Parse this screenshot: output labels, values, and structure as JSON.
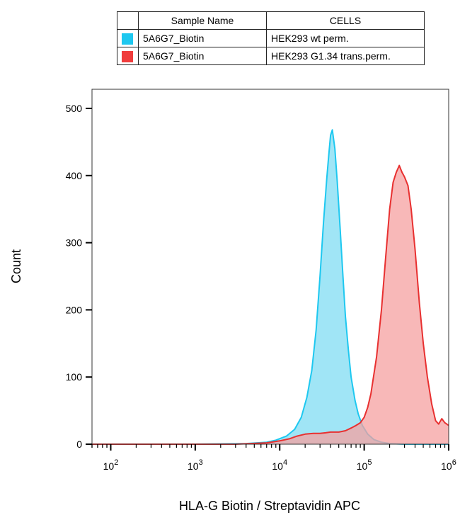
{
  "legend": {
    "header_sample": "Sample Name",
    "header_cells": "CELLS",
    "rows": [
      {
        "sample": "5A6G7_Biotin",
        "cells": "HEK293 wt perm.",
        "color": "#1ec8f0"
      },
      {
        "sample": "5A6G7_Biotin",
        "cells": "HEK293 G1.34 trans.perm.",
        "color": "#f03c3c"
      }
    ]
  },
  "chart_data": {
    "type": "area",
    "xlabel": "HLA-G Biotin / Streptavidin APC",
    "ylabel": "Count",
    "x_scale": "log",
    "xlim": [
      60,
      1000000
    ],
    "ylim": [
      0,
      500
    ],
    "x_ticks": [
      {
        "value": 100,
        "base": "10",
        "exp": "2"
      },
      {
        "value": 1000,
        "base": "10",
        "exp": "3"
      },
      {
        "value": 10000,
        "base": "10",
        "exp": "4"
      },
      {
        "value": 100000,
        "base": "10",
        "exp": "5"
      },
      {
        "value": 1000000,
        "base": "10",
        "exp": "6"
      }
    ],
    "y_ticks": [
      0,
      100,
      200,
      300,
      400,
      500
    ],
    "series": [
      {
        "color": "#1ec8f0",
        "fill": "#8fe0f5",
        "x": [
          60,
          1000,
          4000,
          7000,
          9000,
          12000,
          15000,
          18000,
          21000,
          24000,
          27000,
          30000,
          33000,
          36000,
          38000,
          40000,
          42000,
          45000,
          48000,
          52000,
          56000,
          60000,
          65000,
          70000,
          78000,
          85000,
          95000,
          110000,
          130000,
          160000,
          200000,
          300000,
          1000000
        ],
        "y": [
          0,
          0,
          1,
          3,
          6,
          12,
          22,
          40,
          70,
          110,
          170,
          250,
          330,
          395,
          430,
          460,
          468,
          440,
          390,
          320,
          250,
          190,
          140,
          100,
          65,
          45,
          28,
          15,
          7,
          3,
          1,
          0,
          0
        ]
      },
      {
        "color": "#e83030",
        "fill": "#f5a0a0",
        "x": [
          60,
          3000,
          7000,
          10000,
          13000,
          16000,
          20000,
          25000,
          30000,
          35000,
          40000,
          50000,
          60000,
          70000,
          80000,
          90000,
          100000,
          110000,
          120000,
          140000,
          160000,
          180000,
          200000,
          220000,
          240000,
          260000,
          280000,
          300000,
          330000,
          360000,
          400000,
          450000,
          500000,
          560000,
          630000,
          700000,
          760000,
          830000,
          900000,
          950000,
          1000000
        ],
        "y": [
          0,
          0,
          2,
          5,
          8,
          12,
          15,
          16,
          16,
          17,
          18,
          18,
          20,
          24,
          28,
          32,
          40,
          55,
          75,
          130,
          200,
          280,
          350,
          390,
          405,
          415,
          405,
          398,
          385,
          350,
          290,
          210,
          150,
          100,
          60,
          35,
          30,
          38,
          32,
          30,
          28
        ]
      }
    ]
  }
}
